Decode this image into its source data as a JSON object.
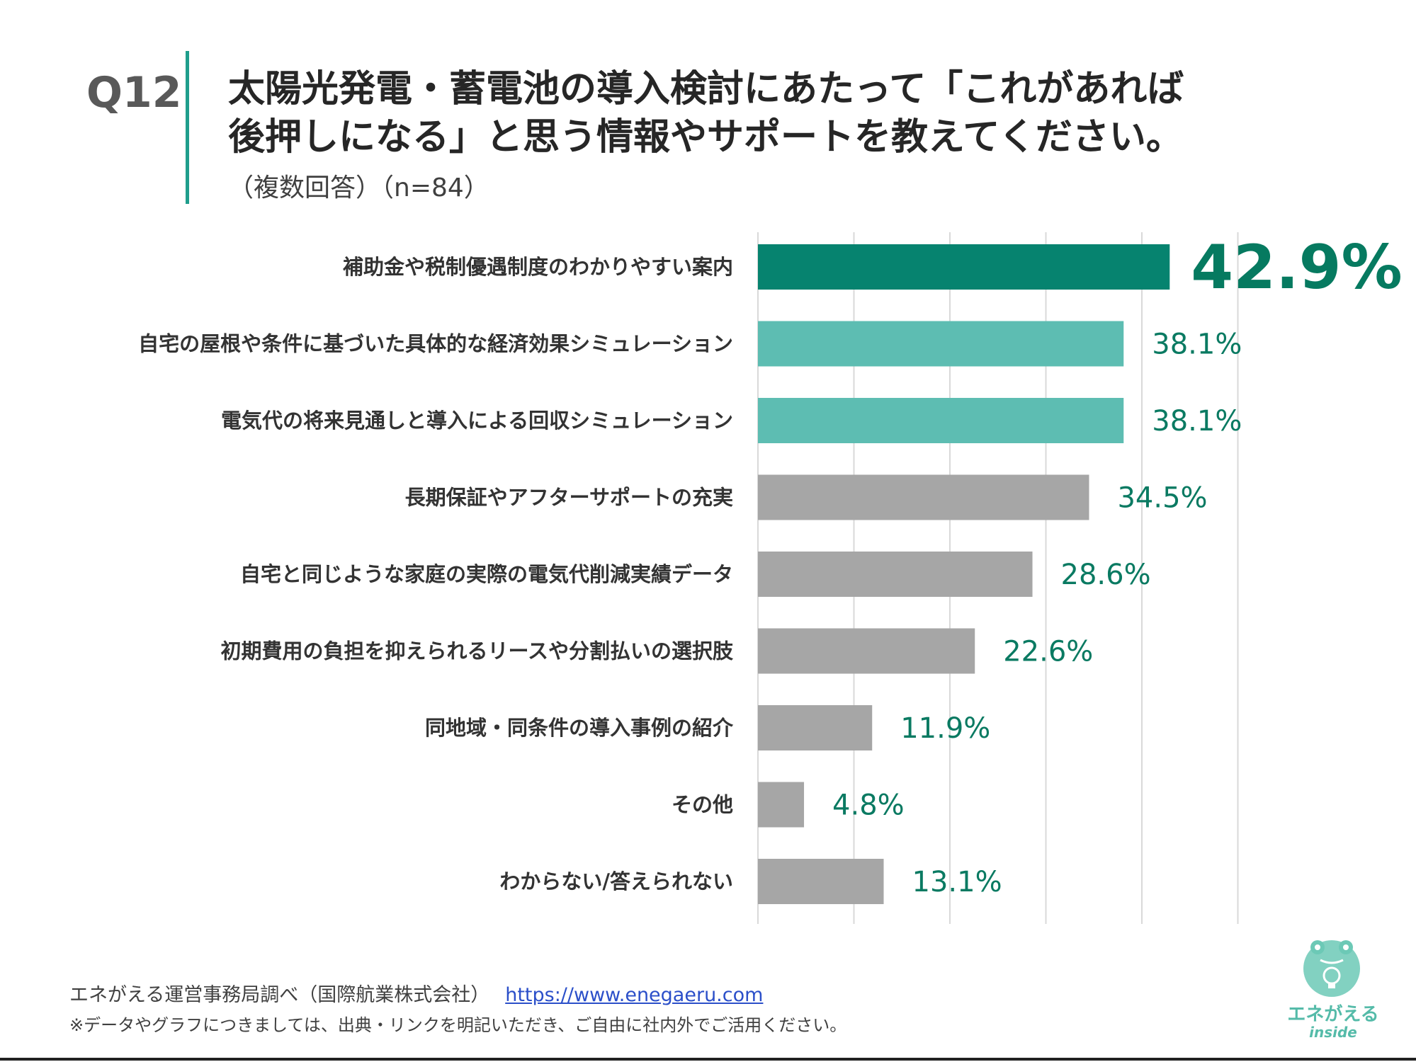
{
  "header": {
    "question_number": "Q12",
    "title_line1": "太陽光発電・蓄電池の導入検討にあたって「これがあれば",
    "title_line2": "後押しになる」と思う情報やサポートを教えてください。",
    "subtitle": "（複数回答）（n=84）"
  },
  "chart_data": {
    "type": "bar",
    "orientation": "horizontal",
    "categories": [
      "補助金や税制優遇制度のわかりやすい案内",
      "自宅の屋根や条件に基づいた具体的な経済効果シミュレーション",
      "電気代の将来見通しと導入による回収シミュレーション",
      "長期保証やアフターサポートの充実",
      "自宅と同じような家庭の実際の電気代削減実績データ",
      "初期費用の負担を抑えられるリースや分割払いの選択肢",
      "同地域・同条件の導入事例の紹介",
      "その他",
      "わからない/答えられない"
    ],
    "values": [
      42.9,
      38.1,
      38.1,
      34.5,
      28.6,
      22.6,
      11.9,
      4.8,
      13.1
    ],
    "value_labels": [
      "42.9%",
      "38.1%",
      "38.1%",
      "34.5%",
      "28.6%",
      "22.6%",
      "11.9%",
      "4.8%",
      "13.1%"
    ],
    "xlim": [
      0,
      50
    ],
    "grid": true,
    "colors": [
      "#06836f",
      "#5dbdb2",
      "#5dbdb2",
      "#a6a6a6",
      "#a6a6a6",
      "#a6a6a6",
      "#a6a6a6",
      "#a6a6a6",
      "#a6a6a6"
    ],
    "label_color": "#0a7a62",
    "grid_color": "#d9d9d9"
  },
  "footer": {
    "source": "エネがえる運営事務局調べ（国際航業株式会社）",
    "link": "https://www.enegaeru.com",
    "note": "※データやグラフにつきましては、出典・リンクを明記いただき、ご自由に社内外でご活用ください。"
  },
  "logo": {
    "name": "エネがえる",
    "sub": "inside",
    "icon": "frog-lightbulb-icon",
    "color": "#55bba9"
  }
}
